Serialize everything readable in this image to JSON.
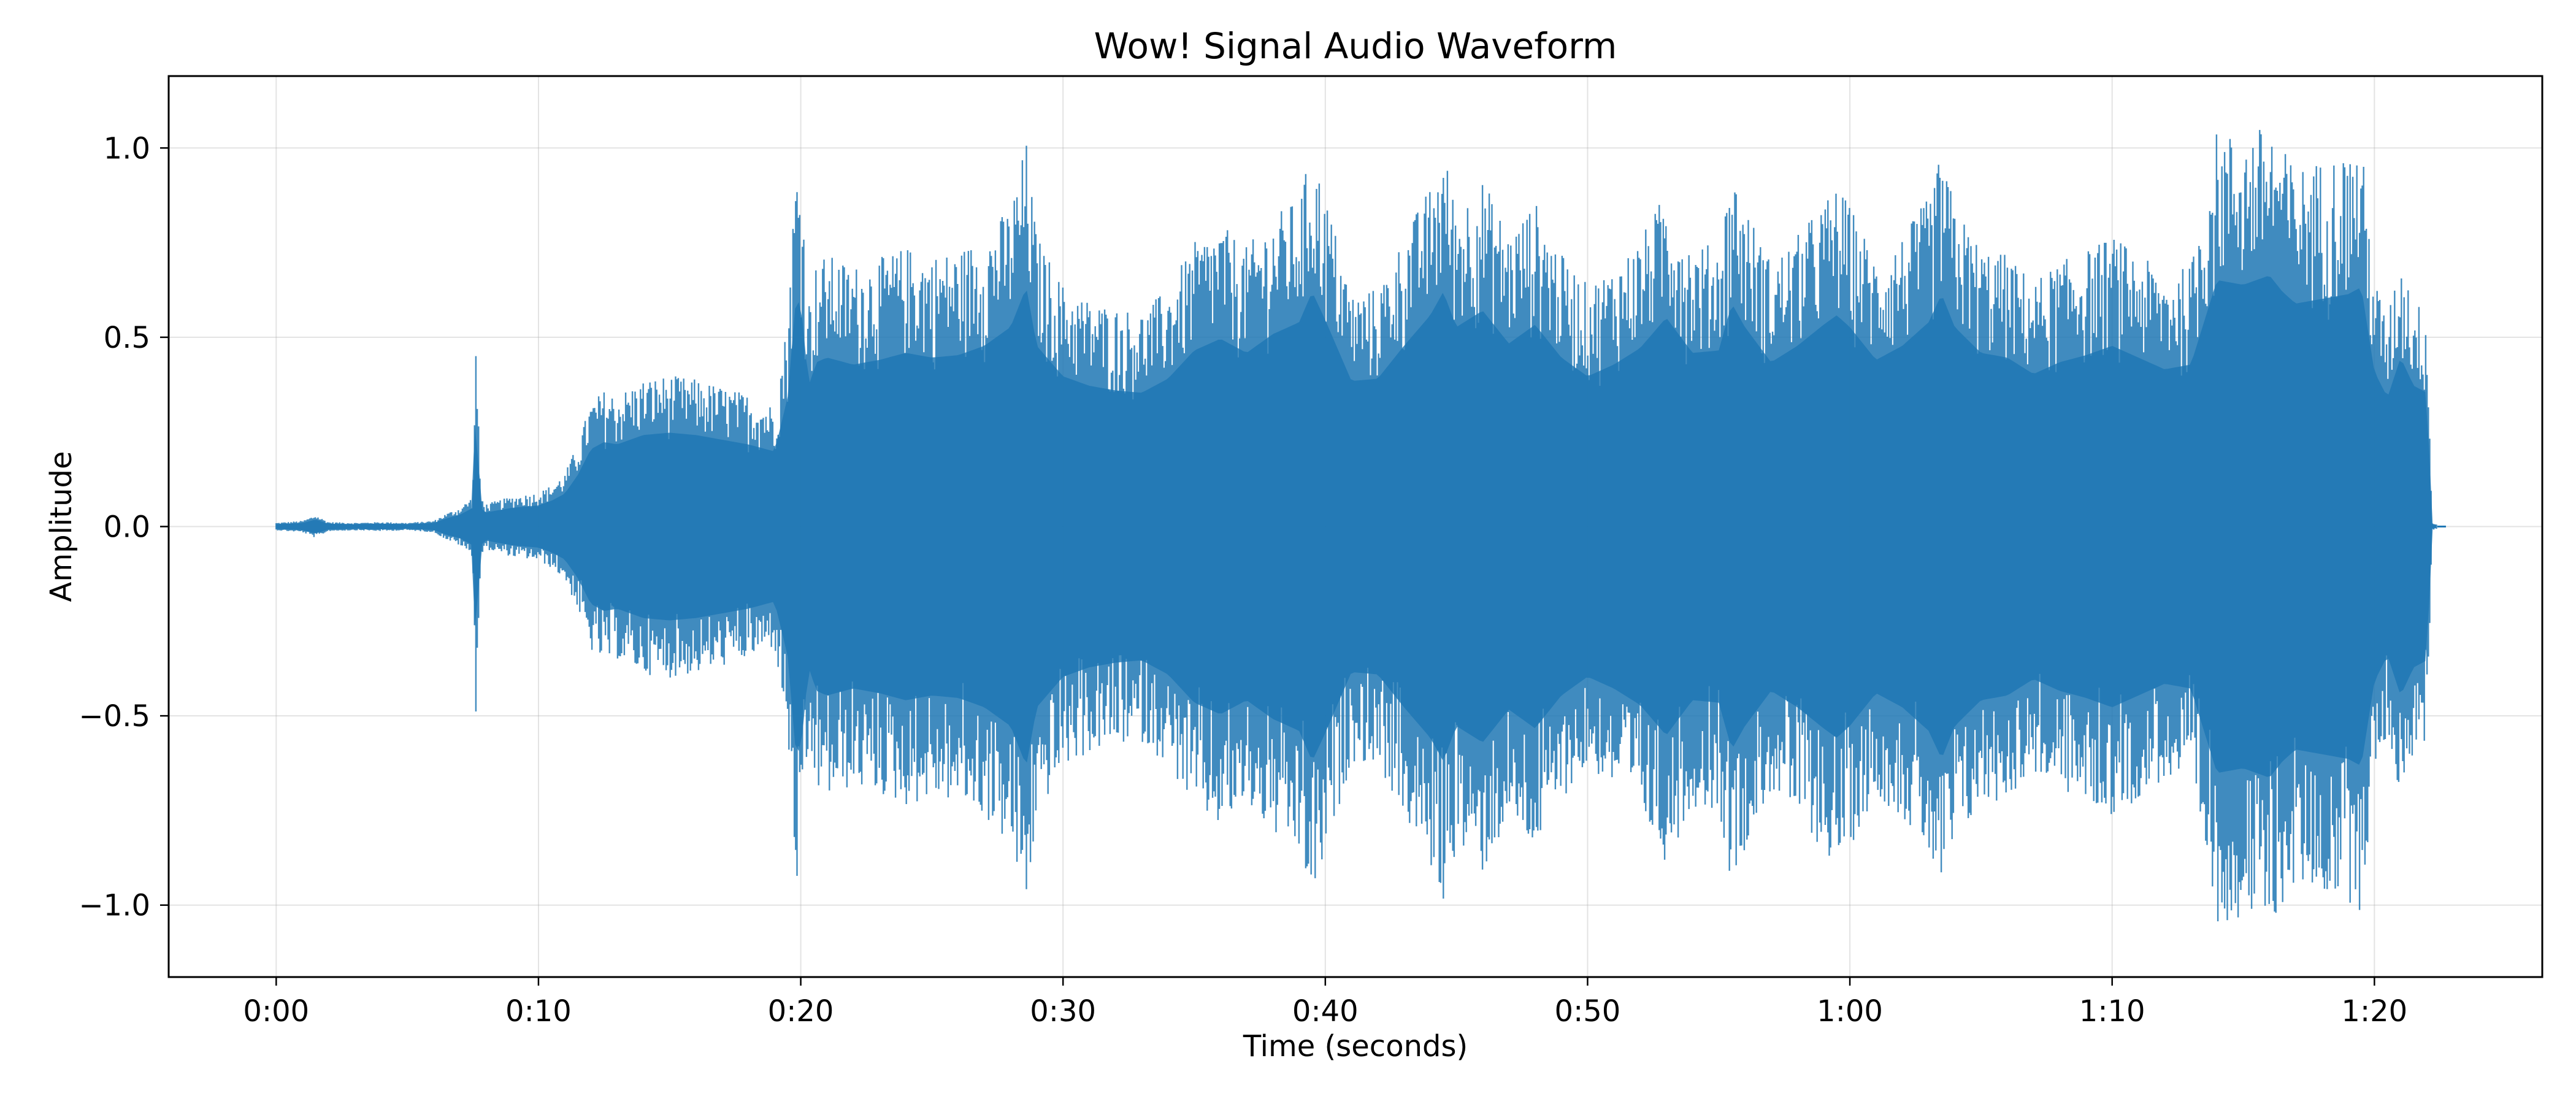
{
  "chart_data": {
    "type": "area",
    "title": "Wow! Signal Audio Waveform",
    "xlabel": "Time (seconds)",
    "ylabel": "Amplitude",
    "xlim": [
      -4.1,
      86.4
    ],
    "ylim": [
      -1.19,
      1.19
    ],
    "grid": true,
    "series_color": "#1f77b4",
    "x_ticks": [
      {
        "value": 0,
        "label": "0:00"
      },
      {
        "value": 10,
        "label": "0:10"
      },
      {
        "value": 20,
        "label": "0:20"
      },
      {
        "value": 30,
        "label": "0:30"
      },
      {
        "value": 40,
        "label": "0:40"
      },
      {
        "value": 50,
        "label": "0:50"
      },
      {
        "value": 60,
        "label": "1:00"
      },
      {
        "value": 70,
        "label": "1:10"
      },
      {
        "value": 80,
        "label": "1:20"
      }
    ],
    "y_ticks": [
      {
        "value": 1.0,
        "label": "1.0"
      },
      {
        "value": 0.5,
        "label": "0.5"
      },
      {
        "value": 0.0,
        "label": "0.0"
      },
      {
        "value": -0.5,
        "label": "−0.5"
      },
      {
        "value": -1.0,
        "label": "−1.0"
      }
    ],
    "envelope": {
      "time": [
        0,
        1,
        1.5,
        2,
        3,
        4,
        5,
        6,
        6.5,
        7,
        7.5,
        7.6,
        7.8,
        8,
        9,
        10,
        10.5,
        11,
        11.5,
        12,
        12.5,
        13,
        14,
        15,
        16,
        17,
        18,
        19,
        19.5,
        19.8,
        20.0,
        20.3,
        20.6,
        21,
        22,
        23,
        24,
        25,
        26,
        27,
        28,
        28.6,
        29,
        30,
        31,
        32,
        33,
        34,
        35,
        36,
        37,
        38,
        39,
        39.5,
        40,
        41,
        42,
        43,
        44,
        44.5,
        45,
        46,
        47,
        48,
        49,
        50,
        51,
        52,
        53,
        54,
        55,
        55.5,
        56,
        57,
        58,
        59,
        59.5,
        60,
        61,
        62,
        63,
        63.5,
        64,
        65,
        66,
        67,
        68,
        69,
        70,
        71,
        72,
        73,
        74,
        75,
        76,
        76.5,
        77,
        78,
        79,
        79.5,
        80,
        80.5,
        81,
        81.5,
        82,
        82.2,
        82.4
      ],
      "amplitude": [
        0.01,
        0.015,
        0.03,
        0.012,
        0.01,
        0.012,
        0.01,
        0.015,
        0.035,
        0.05,
        0.08,
        0.53,
        0.08,
        0.06,
        0.08,
        0.09,
        0.11,
        0.14,
        0.22,
        0.33,
        0.36,
        0.35,
        0.39,
        0.4,
        0.39,
        0.37,
        0.35,
        0.32,
        0.55,
        0.95,
        0.96,
        0.6,
        0.7,
        0.72,
        0.69,
        0.71,
        0.74,
        0.72,
        0.73,
        0.77,
        0.85,
        1.02,
        0.77,
        0.64,
        0.6,
        0.58,
        0.57,
        0.63,
        0.75,
        0.8,
        0.74,
        0.82,
        0.87,
        1.0,
        0.88,
        0.62,
        0.63,
        0.77,
        0.9,
        1.0,
        0.85,
        0.92,
        0.78,
        0.86,
        0.72,
        0.64,
        0.69,
        0.76,
        0.89,
        0.74,
        0.75,
        0.95,
        0.85,
        0.7,
        0.77,
        0.86,
        0.9,
        0.85,
        0.71,
        0.77,
        0.87,
        0.99,
        0.85,
        0.74,
        0.72,
        0.65,
        0.7,
        0.73,
        0.77,
        0.72,
        0.67,
        0.69,
        1.05,
        1.03,
        1.07,
        1.0,
        0.95,
        0.97,
        0.99,
        1.02,
        0.66,
        0.55,
        0.72,
        0.6,
        0.57,
        0.01,
        0.005
      ]
    }
  }
}
